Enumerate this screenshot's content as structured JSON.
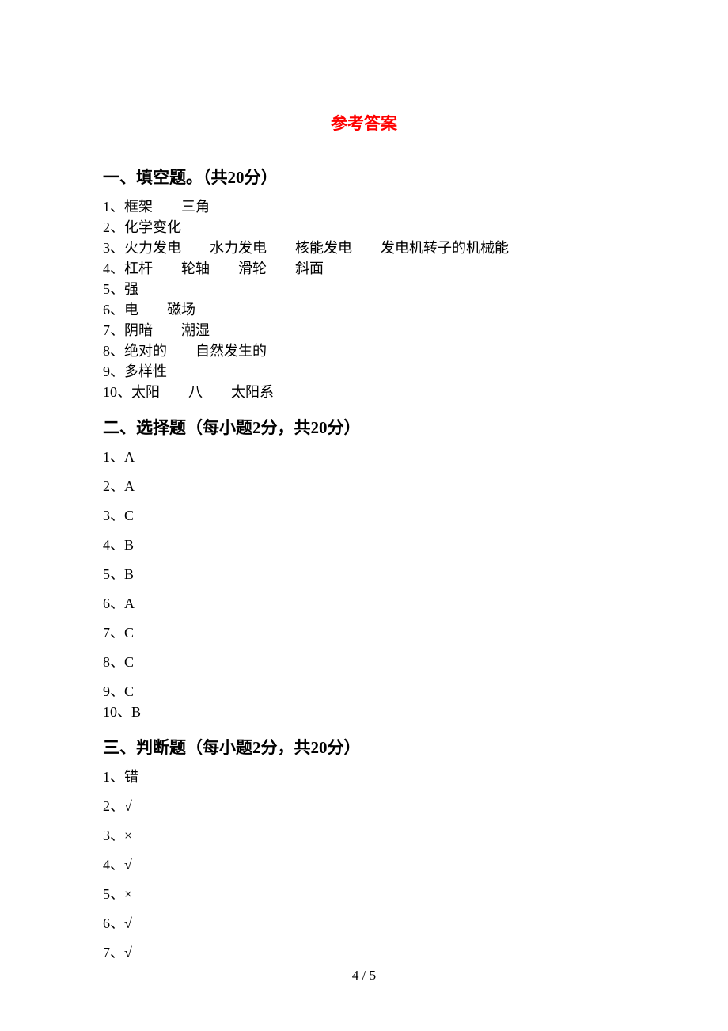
{
  "title": "参考答案",
  "sections": {
    "fill": {
      "header": "一、填空题。（共20分）",
      "items": [
        "1、框架　　三角",
        "2、化学变化",
        "3、火力发电　　水力发电　　核能发电　　发电机转子的机械能",
        "4、杠杆　　轮轴　　滑轮　　斜面",
        "5、强",
        "6、电　　磁场",
        "7、阴暗　　潮湿",
        "8、绝对的　　自然发生的",
        "9、多样性",
        "10、太阳　　八　　太阳系"
      ]
    },
    "choice": {
      "header": "二、选择题（每小题2分，共20分）",
      "items": [
        "1、A",
        "2、A",
        "3、C",
        "4、B",
        "5、B",
        "6、A",
        "7、C",
        "8、C",
        "9、C",
        "10、B"
      ]
    },
    "judge": {
      "header": "三、判断题（每小题2分，共20分）",
      "items": [
        "1、错",
        "2、√",
        "3、×",
        "4、√",
        "5、×",
        "6、√",
        "7、√"
      ]
    }
  },
  "footer": "4 / 5"
}
